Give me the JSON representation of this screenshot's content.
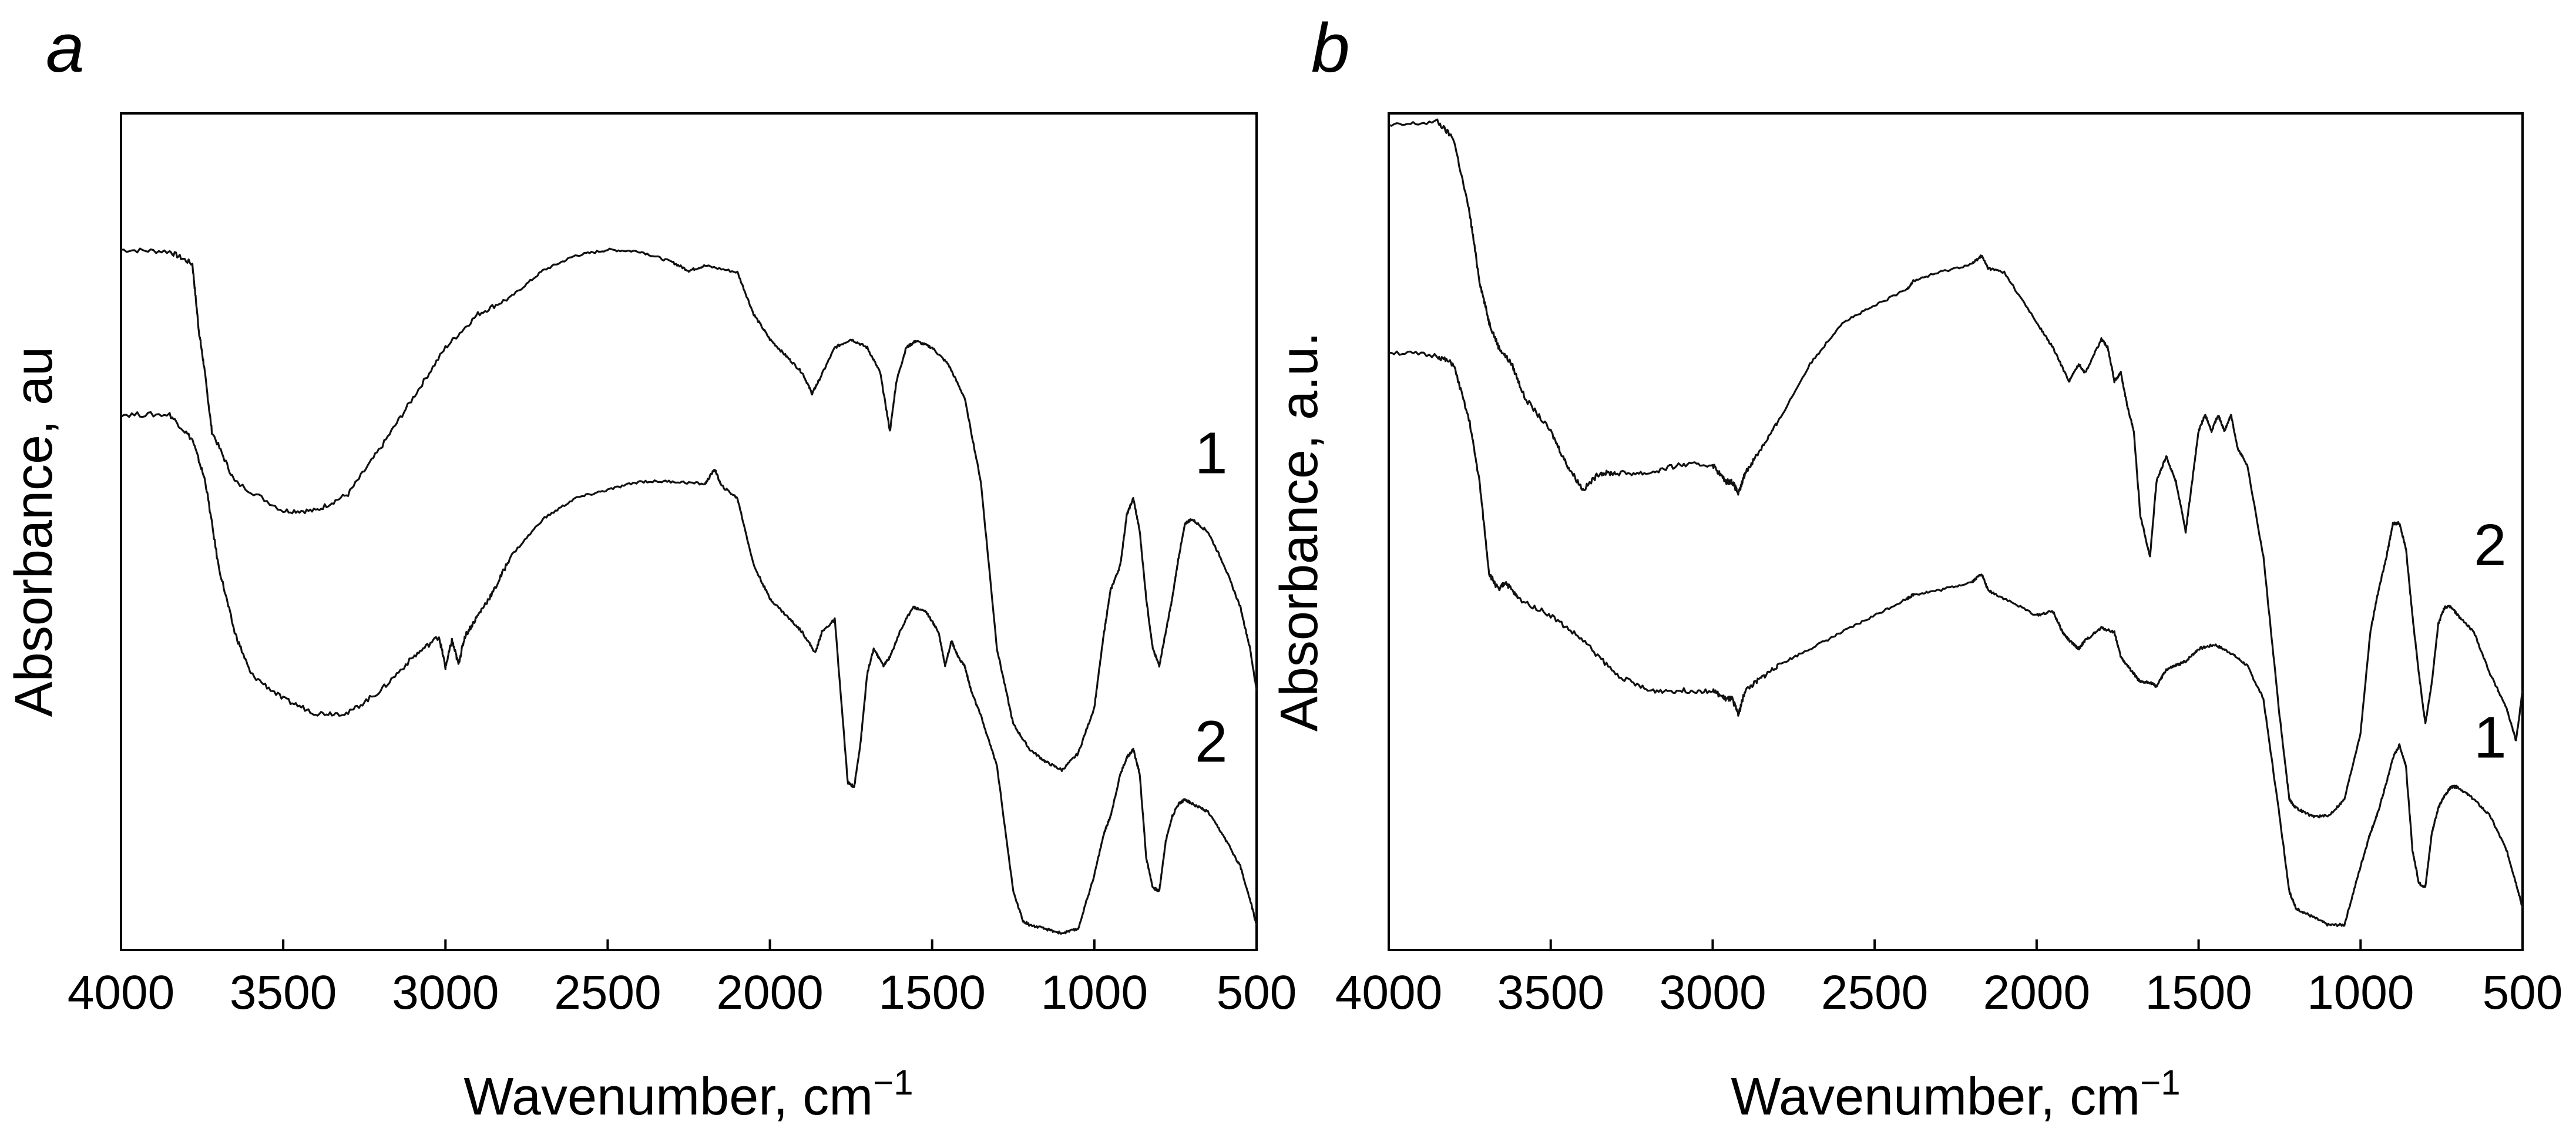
{
  "chart_data": [
    {
      "panel": "a",
      "type": "line",
      "title": "",
      "xlabel": "Wavenumber, cm",
      "xlabel_sup": "−1",
      "ylabel": "Absorbance, au",
      "xlim": [
        4000,
        500
      ],
      "ylim": [
        0,
        1
      ],
      "grid": false,
      "xticks": [
        "4000",
        "3500",
        "3000",
        "2500",
        "2000",
        "1500",
        "1000",
        "500"
      ],
      "series": [
        {
          "name": "1",
          "x": [
            4000,
            3850,
            3780,
            3760,
            3745,
            3720,
            3650,
            3500,
            3400,
            3300,
            3200,
            3100,
            3000,
            2900,
            2800,
            2700,
            2600,
            2500,
            2400,
            2300,
            2250,
            2200,
            2100,
            2050,
            2000,
            1950,
            1900,
            1870,
            1850,
            1800,
            1750,
            1700,
            1660,
            1630,
            1610,
            1580,
            1550,
            1500,
            1450,
            1400,
            1350,
            1300,
            1250,
            1200,
            1150,
            1100,
            1050,
            1000,
            970,
            950,
            920,
            900,
            880,
            860,
            840,
            820,
            800,
            780,
            760,
            740,
            720,
            700,
            650,
            600,
            550,
            520,
            500
          ],
          "y": [
            0.837,
            0.835,
            0.82,
            0.74,
            0.7,
            0.62,
            0.56,
            0.525,
            0.525,
            0.545,
            0.6,
            0.66,
            0.72,
            0.76,
            0.78,
            0.812,
            0.83,
            0.837,
            0.835,
            0.822,
            0.812,
            0.818,
            0.81,
            0.76,
            0.73,
            0.71,
            0.69,
            0.665,
            0.68,
            0.72,
            0.73,
            0.72,
            0.69,
            0.62,
            0.68,
            0.72,
            0.728,
            0.72,
            0.7,
            0.66,
            0.56,
            0.36,
            0.27,
            0.24,
            0.225,
            0.215,
            0.235,
            0.29,
            0.38,
            0.43,
            0.46,
            0.52,
            0.54,
            0.5,
            0.42,
            0.36,
            0.34,
            0.38,
            0.42,
            0.47,
            0.51,
            0.515,
            0.5,
            0.46,
            0.41,
            0.36,
            0.31
          ]
        },
        {
          "name": "2",
          "x": [
            4000,
            3850,
            3780,
            3740,
            3700,
            3650,
            3600,
            3500,
            3400,
            3300,
            3200,
            3100,
            3020,
            3000,
            2980,
            2960,
            2940,
            2900,
            2850,
            2800,
            2700,
            2600,
            2500,
            2400,
            2300,
            2200,
            2170,
            2150,
            2100,
            2050,
            2000,
            1950,
            1900,
            1860,
            1840,
            1800,
            1760,
            1740,
            1720,
            1700,
            1680,
            1650,
            1630,
            1600,
            1560,
            1520,
            1480,
            1460,
            1440,
            1420,
            1400,
            1380,
            1350,
            1300,
            1250,
            1220,
            1200,
            1150,
            1100,
            1050,
            1000,
            970,
            950,
            920,
            900,
            880,
            860,
            840,
            820,
            800,
            780,
            760,
            740,
            720,
            700,
            650,
            600,
            550,
            520,
            500
          ],
          "y": [
            0.64,
            0.64,
            0.61,
            0.56,
            0.46,
            0.38,
            0.33,
            0.3,
            0.283,
            0.283,
            0.31,
            0.35,
            0.375,
            0.338,
            0.37,
            0.342,
            0.375,
            0.4,
            0.43,
            0.47,
            0.515,
            0.54,
            0.55,
            0.56,
            0.56,
            0.557,
            0.575,
            0.555,
            0.54,
            0.46,
            0.42,
            0.4,
            0.38,
            0.355,
            0.38,
            0.395,
            0.2,
            0.195,
            0.25,
            0.33,
            0.36,
            0.34,
            0.35,
            0.38,
            0.41,
            0.405,
            0.38,
            0.34,
            0.37,
            0.35,
            0.34,
            0.31,
            0.28,
            0.22,
            0.07,
            0.035,
            0.03,
            0.025,
            0.02,
            0.025,
            0.09,
            0.14,
            0.16,
            0.21,
            0.23,
            0.24,
            0.21,
            0.11,
            0.075,
            0.07,
            0.13,
            0.16,
            0.175,
            0.18,
            0.175,
            0.165,
            0.135,
            0.1,
            0.06,
            0.03
          ]
        }
      ],
      "curve_labels": [
        {
          "text": "1",
          "x": 640,
          "y": 0.57
        },
        {
          "text": "2",
          "x": 640,
          "y": 0.225
        }
      ]
    },
    {
      "panel": "b",
      "type": "line",
      "title": "",
      "xlabel": "Wavenumber, cm",
      "xlabel_sup": "−1",
      "ylabel": "Absorbance, a.u.",
      "xlim": [
        4000,
        500
      ],
      "ylim": [
        0,
        1
      ],
      "grid": false,
      "xticks": [
        "4000",
        "3500",
        "3000",
        "2500",
        "2000",
        "1500",
        "1000",
        "500"
      ],
      "series": [
        {
          "name": "2",
          "x": [
            4000,
            3850,
            3800,
            3750,
            3720,
            3690,
            3660,
            3620,
            3580,
            3500,
            3450,
            3400,
            3350,
            3300,
            3200,
            3100,
            3000,
            2960,
            2940,
            2920,
            2900,
            2850,
            2800,
            2700,
            2600,
            2500,
            2400,
            2380,
            2300,
            2200,
            2170,
            2150,
            2100,
            2000,
            1950,
            1900,
            1870,
            1850,
            1800,
            1780,
            1760,
            1740,
            1720,
            1700,
            1680,
            1650,
            1630,
            1600,
            1570,
            1540,
            1520,
            1500,
            1480,
            1460,
            1440,
            1420,
            1400,
            1380,
            1350,
            1300,
            1250,
            1220,
            1200,
            1150,
            1100,
            1050,
            1000,
            970,
            950,
            920,
            900,
            880,
            860,
            840,
            820,
            800,
            780,
            760,
            740,
            720,
            700,
            650,
            600,
            550,
            520,
            500
          ],
          "y": [
            0.985,
            0.99,
            0.97,
            0.88,
            0.8,
            0.75,
            0.72,
            0.7,
            0.66,
            0.62,
            0.58,
            0.55,
            0.57,
            0.57,
            0.57,
            0.58,
            0.58,
            0.56,
            0.56,
            0.545,
            0.57,
            0.6,
            0.63,
            0.7,
            0.75,
            0.77,
            0.79,
            0.8,
            0.81,
            0.82,
            0.83,
            0.815,
            0.81,
            0.75,
            0.72,
            0.68,
            0.7,
            0.69,
            0.73,
            0.72,
            0.68,
            0.69,
            0.65,
            0.62,
            0.52,
            0.47,
            0.56,
            0.59,
            0.56,
            0.5,
            0.56,
            0.62,
            0.64,
            0.62,
            0.64,
            0.62,
            0.64,
            0.6,
            0.58,
            0.47,
            0.28,
            0.18,
            0.17,
            0.16,
            0.16,
            0.18,
            0.26,
            0.38,
            0.42,
            0.47,
            0.51,
            0.51,
            0.48,
            0.4,
            0.33,
            0.27,
            0.32,
            0.39,
            0.41,
            0.41,
            0.4,
            0.38,
            0.33,
            0.29,
            0.25,
            0.31
          ]
        },
        {
          "name": "1",
          "x": [
            4000,
            3850,
            3800,
            3750,
            3720,
            3690,
            3660,
            3640,
            3600,
            3500,
            3400,
            3300,
            3200,
            3100,
            3000,
            2960,
            2940,
            2920,
            2900,
            2850,
            2800,
            2700,
            2600,
            2500,
            2400,
            2380,
            2300,
            2200,
            2170,
            2150,
            2100,
            2000,
            1950,
            1920,
            1900,
            1870,
            1850,
            1800,
            1760,
            1740,
            1720,
            1700,
            1680,
            1650,
            1630,
            1600,
            1570,
            1540,
            1500,
            1450,
            1400,
            1350,
            1300,
            1250,
            1220,
            1200,
            1150,
            1100,
            1050,
            1000,
            970,
            950,
            920,
            900,
            880,
            860,
            840,
            820,
            800,
            780,
            760,
            740,
            720,
            700,
            650,
            600,
            550,
            520,
            500
          ],
          "y": [
            0.715,
            0.71,
            0.7,
            0.63,
            0.56,
            0.45,
            0.43,
            0.44,
            0.42,
            0.4,
            0.37,
            0.33,
            0.31,
            0.31,
            0.31,
            0.3,
            0.3,
            0.282,
            0.31,
            0.325,
            0.34,
            0.36,
            0.38,
            0.4,
            0.42,
            0.425,
            0.43,
            0.44,
            0.45,
            0.43,
            0.42,
            0.4,
            0.405,
            0.38,
            0.37,
            0.36,
            0.37,
            0.385,
            0.38,
            0.35,
            0.34,
            0.33,
            0.32,
            0.32,
            0.315,
            0.335,
            0.34,
            0.345,
            0.36,
            0.365,
            0.355,
            0.34,
            0.3,
            0.16,
            0.07,
            0.05,
            0.04,
            0.03,
            0.03,
            0.1,
            0.14,
            0.16,
            0.2,
            0.23,
            0.245,
            0.22,
            0.12,
            0.08,
            0.075,
            0.14,
            0.17,
            0.185,
            0.195,
            0.195,
            0.18,
            0.16,
            0.12,
            0.08,
            0.05
          ]
        }
      ],
      "curve_labels": [
        {
          "text": "2",
          "x": 600,
          "y": 0.46
        },
        {
          "text": "1",
          "x": 600,
          "y": 0.23
        }
      ]
    }
  ]
}
